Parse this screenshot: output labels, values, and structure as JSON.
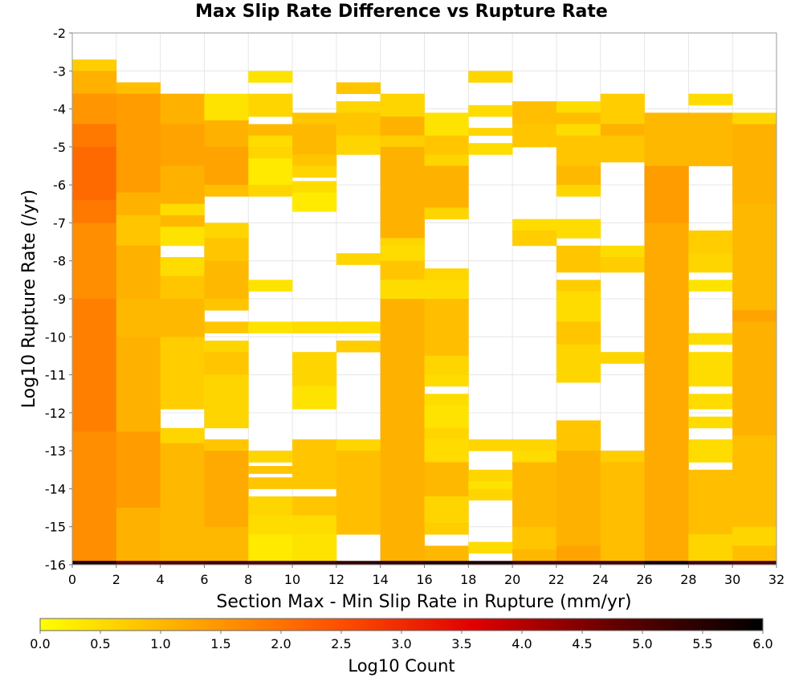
{
  "chart_data": {
    "type": "heatmap",
    "title": "Max Slip Rate Difference vs Rupture Rate",
    "xlabel": "Section Max - Min Slip Rate in Rupture (mm/yr)",
    "ylabel": "Log10 Rupture Rate (/yr)",
    "xlim": [
      0,
      32
    ],
    "ylim": [
      -16,
      -2
    ],
    "x_ticks": [
      0,
      2,
      4,
      6,
      8,
      10,
      12,
      14,
      16,
      18,
      20,
      22,
      24,
      26,
      28,
      30,
      32
    ],
    "y_ticks": [
      -2,
      -3,
      -4,
      -5,
      -6,
      -7,
      -8,
      -9,
      -10,
      -11,
      -12,
      -13,
      -14,
      -15,
      -16
    ],
    "x_bin_width": 2,
    "y_bin_height": 0.25,
    "grid": true,
    "colorbar": {
      "label": "Log10 Count",
      "range": [
        0,
        6
      ],
      "ticks": [
        "0.0",
        "0.5",
        "1.0",
        "1.5",
        "2.0",
        "2.5",
        "3.0",
        "3.5",
        "4.0",
        "4.5",
        "5.0",
        "5.5",
        "6.0"
      ],
      "colors": [
        "#ffff00",
        "#ffaa00",
        "#ff5500",
        "#e00000",
        "#600000",
        "#000000"
      ],
      "placement": "bottom"
    },
    "columns": [
      {
        "x": 0,
        "runs": [
          [
            -3.0,
            -2.7,
            0.7
          ],
          [
            -3.6,
            -3.0,
            1.1
          ],
          [
            -4.4,
            -3.6,
            1.5
          ],
          [
            -5.0,
            -4.4,
            1.9
          ],
          [
            -6.4,
            -5.0,
            2.1
          ],
          [
            -7.0,
            -6.4,
            1.9
          ],
          [
            -8.0,
            -7.0,
            1.6
          ],
          [
            -9.0,
            -8.0,
            1.6
          ],
          [
            -12.5,
            -9.0,
            1.8
          ],
          [
            -15.9,
            -12.5,
            1.6
          ],
          [
            -16.0,
            -15.9,
            5.6
          ]
        ]
      },
      {
        "x": 2,
        "runs": [
          [
            -3.6,
            -3.3,
            0.9
          ],
          [
            -6.2,
            -3.6,
            1.4
          ],
          [
            -6.8,
            -6.2,
            1.1
          ],
          [
            -7.6,
            -6.8,
            0.8
          ],
          [
            -9.0,
            -7.6,
            1.1
          ],
          [
            -10.0,
            -9.0,
            1.0
          ],
          [
            -12.5,
            -10.0,
            1.1
          ],
          [
            -14.5,
            -12.5,
            1.4
          ],
          [
            -15.9,
            -14.5,
            1.1
          ],
          [
            -16.0,
            -15.9,
            4.8
          ]
        ]
      },
      {
        "x": 4,
        "runs": [
          [
            -4.4,
            -3.6,
            1.1
          ],
          [
            -5.5,
            -4.4,
            1.3
          ],
          [
            -6.5,
            -5.5,
            1.1
          ],
          [
            -6.8,
            -6.5,
            0.5
          ],
          [
            -7.1,
            -6.8,
            1.0
          ],
          [
            -7.6,
            -7.1,
            0.4
          ],
          [
            -8.4,
            -7.9,
            0.5
          ],
          [
            -9.0,
            -8.4,
            0.8
          ],
          [
            -10.0,
            -9.0,
            1.0
          ],
          [
            -11.0,
            -10.0,
            0.7
          ],
          [
            -11.9,
            -11.0,
            0.7
          ],
          [
            -12.8,
            -12.4,
            0.6
          ],
          [
            -13.5,
            -12.8,
            1.0
          ],
          [
            -15.9,
            -13.5,
            1.0
          ],
          [
            -16.0,
            -15.9,
            5.0
          ]
        ]
      },
      {
        "x": 6,
        "runs": [
          [
            -4.3,
            -3.6,
            0.4
          ],
          [
            -5.0,
            -4.3,
            1.1
          ],
          [
            -6.0,
            -5.0,
            1.3
          ],
          [
            -6.3,
            -6.0,
            0.9
          ],
          [
            -7.4,
            -7.0,
            0.6
          ],
          [
            -8.0,
            -7.4,
            0.8
          ],
          [
            -9.0,
            -8.0,
            1.0
          ],
          [
            -9.3,
            -9.0,
            0.8
          ],
          [
            -9.9,
            -9.6,
            0.8
          ],
          [
            -10.4,
            -10.1,
            0.6
          ],
          [
            -11.0,
            -10.4,
            0.8
          ],
          [
            -12.0,
            -11.0,
            0.6
          ],
          [
            -12.4,
            -12.0,
            0.6
          ],
          [
            -13.0,
            -12.7,
            0.8
          ],
          [
            -15.0,
            -13.0,
            1.2
          ],
          [
            -15.9,
            -15.0,
            1.0
          ],
          [
            -16.0,
            -15.9,
            5.2
          ]
        ]
      },
      {
        "x": 8,
        "runs": [
          [
            -3.3,
            -3.0,
            0.4
          ],
          [
            -4.2,
            -3.6,
            0.6
          ],
          [
            -4.7,
            -4.4,
            1.0
          ],
          [
            -5.0,
            -4.7,
            0.5
          ],
          [
            -5.3,
            -5.0,
            0.6
          ],
          [
            -6.0,
            -5.3,
            0.3
          ],
          [
            -6.3,
            -6.0,
            0.6
          ],
          [
            -8.8,
            -8.5,
            0.4
          ],
          [
            -9.9,
            -9.6,
            0.4
          ],
          [
            -13.3,
            -13.0,
            0.6
          ],
          [
            -13.6,
            -13.4,
            0.8
          ],
          [
            -14.0,
            -13.7,
            0.8
          ],
          [
            -14.7,
            -14.2,
            0.6
          ],
          [
            -15.2,
            -14.7,
            0.5
          ],
          [
            -15.9,
            -15.2,
            0.3
          ],
          [
            -16.0,
            -15.9,
            5.0
          ]
        ]
      },
      {
        "x": 10,
        "runs": [
          [
            -4.4,
            -4.1,
            0.8
          ],
          [
            -5.2,
            -4.4,
            1.0
          ],
          [
            -5.5,
            -5.2,
            0.8
          ],
          [
            -5.8,
            -5.5,
            0.6
          ],
          [
            -6.2,
            -5.9,
            0.5
          ],
          [
            -6.7,
            -6.2,
            0.3
          ],
          [
            -9.9,
            -9.6,
            0.5
          ],
          [
            -11.3,
            -10.4,
            0.6
          ],
          [
            -11.9,
            -11.3,
            0.4
          ],
          [
            -13.0,
            -12.7,
            0.8
          ],
          [
            -14.0,
            -13.0,
            0.8
          ],
          [
            -14.7,
            -14.2,
            0.8
          ],
          [
            -15.2,
            -14.7,
            0.5
          ],
          [
            -15.9,
            -15.2,
            0.4
          ],
          [
            -16.0,
            -15.9,
            5.2
          ]
        ]
      },
      {
        "x": 12,
        "runs": [
          [
            -3.6,
            -3.3,
            0.8
          ],
          [
            -4.1,
            -3.8,
            0.6
          ],
          [
            -4.7,
            -4.1,
            0.8
          ],
          [
            -5.2,
            -4.7,
            0.6
          ],
          [
            -8.1,
            -7.8,
            0.6
          ],
          [
            -9.9,
            -9.6,
            0.5
          ],
          [
            -10.4,
            -10.1,
            0.7
          ],
          [
            -13.0,
            -12.7,
            0.6
          ],
          [
            -15.2,
            -13.0,
            0.9
          ],
          [
            -16.0,
            -15.9,
            5.4
          ]
        ]
      },
      {
        "x": 14,
        "runs": [
          [
            -4.2,
            -3.6,
            0.6
          ],
          [
            -4.7,
            -4.2,
            1.1
          ],
          [
            -5.0,
            -4.7,
            0.7
          ],
          [
            -6.0,
            -5.0,
            1.1
          ],
          [
            -7.4,
            -6.0,
            1.1
          ],
          [
            -7.6,
            -7.4,
            0.6
          ],
          [
            -8.0,
            -7.6,
            0.5
          ],
          [
            -8.5,
            -8.0,
            0.8
          ],
          [
            -9.0,
            -8.5,
            0.5
          ],
          [
            -15.9,
            -9.0,
            1.1
          ],
          [
            -16.0,
            -15.9,
            5.4
          ]
        ]
      },
      {
        "x": 16,
        "runs": [
          [
            -4.7,
            -4.1,
            0.4
          ],
          [
            -5.2,
            -4.7,
            0.8
          ],
          [
            -5.5,
            -5.2,
            0.6
          ],
          [
            -6.6,
            -5.5,
            1.1
          ],
          [
            -6.9,
            -6.6,
            0.6
          ],
          [
            -8.5,
            -8.2,
            0.6
          ],
          [
            -9.0,
            -8.5,
            0.5
          ],
          [
            -10.5,
            -9.0,
            0.9
          ],
          [
            -11.0,
            -10.5,
            0.6
          ],
          [
            -11.3,
            -11.0,
            0.5
          ],
          [
            -11.8,
            -11.5,
            0.5
          ],
          [
            -12.4,
            -11.8,
            0.4
          ],
          [
            -12.7,
            -12.4,
            0.6
          ],
          [
            -13.3,
            -12.7,
            0.5
          ],
          [
            -14.2,
            -13.3,
            1.0
          ],
          [
            -14.9,
            -14.2,
            0.6
          ],
          [
            -15.2,
            -14.9,
            0.7
          ],
          [
            -15.9,
            -15.5,
            1.0
          ],
          [
            -16.0,
            -15.9,
            5.6
          ]
        ]
      },
      {
        "x": 18,
        "runs": [
          [
            -3.3,
            -3.0,
            0.6
          ],
          [
            -4.2,
            -3.9,
            0.5
          ],
          [
            -4.7,
            -4.5,
            0.6
          ],
          [
            -5.2,
            -4.9,
            0.5
          ],
          [
            -13.0,
            -12.7,
            0.6
          ],
          [
            -13.8,
            -13.5,
            0.6
          ],
          [
            -14.0,
            -13.8,
            0.4
          ],
          [
            -14.3,
            -14.0,
            0.6
          ],
          [
            -15.7,
            -15.4,
            0.5
          ],
          [
            -16.0,
            -15.9,
            5.6
          ]
        ]
      },
      {
        "x": 20,
        "runs": [
          [
            -4.4,
            -3.8,
            0.9
          ],
          [
            -5.0,
            -4.4,
            0.8
          ],
          [
            -7.2,
            -6.9,
            0.5
          ],
          [
            -7.6,
            -7.2,
            0.7
          ],
          [
            -13.0,
            -12.7,
            0.6
          ],
          [
            -13.3,
            -13.0,
            0.5
          ],
          [
            -15.0,
            -13.3,
            1.0
          ],
          [
            -15.6,
            -15.0,
            0.8
          ],
          [
            -15.9,
            -15.6,
            1.0
          ],
          [
            -16.0,
            -15.9,
            5.2
          ]
        ]
      },
      {
        "x": 22,
        "runs": [
          [
            -4.1,
            -3.8,
            0.5
          ],
          [
            -4.4,
            -4.1,
            0.9
          ],
          [
            -4.7,
            -4.4,
            0.5
          ],
          [
            -5.5,
            -4.7,
            0.8
          ],
          [
            -6.0,
            -5.5,
            1.0
          ],
          [
            -6.3,
            -6.0,
            0.6
          ],
          [
            -7.2,
            -6.9,
            0.5
          ],
          [
            -7.4,
            -7.2,
            0.5
          ],
          [
            -8.3,
            -7.6,
            0.8
          ],
          [
            -8.8,
            -8.5,
            0.7
          ],
          [
            -9.6,
            -8.8,
            0.5
          ],
          [
            -10.2,
            -9.6,
            0.8
          ],
          [
            -11.2,
            -10.2,
            0.6
          ],
          [
            -13.0,
            -12.2,
            0.8
          ],
          [
            -15.5,
            -13.0,
            1.1
          ],
          [
            -15.9,
            -15.5,
            1.3
          ],
          [
            -16.0,
            -15.9,
            5.2
          ]
        ]
      },
      {
        "x": 24,
        "runs": [
          [
            -4.4,
            -3.6,
            0.7
          ],
          [
            -4.7,
            -4.4,
            1.1
          ],
          [
            -5.4,
            -4.7,
            0.8
          ],
          [
            -7.9,
            -7.6,
            0.5
          ],
          [
            -8.3,
            -7.9,
            0.7
          ],
          [
            -10.7,
            -10.4,
            0.6
          ],
          [
            -13.3,
            -13.0,
            0.7
          ],
          [
            -15.9,
            -13.3,
            0.9
          ],
          [
            -16.0,
            -15.9,
            5.2
          ]
        ]
      },
      {
        "x": 26,
        "runs": [
          [
            -5.5,
            -4.1,
            1.0
          ],
          [
            -7.0,
            -5.5,
            1.4
          ],
          [
            -15.9,
            -7.0,
            1.2
          ],
          [
            -16.0,
            -15.9,
            5.8
          ]
        ]
      },
      {
        "x": 28,
        "runs": [
          [
            -3.9,
            -3.6,
            0.5
          ],
          [
            -5.5,
            -4.1,
            1.0
          ],
          [
            -7.8,
            -7.2,
            0.7
          ],
          [
            -8.3,
            -7.8,
            0.6
          ],
          [
            -8.8,
            -8.5,
            0.4
          ],
          [
            -10.2,
            -9.9,
            0.5
          ],
          [
            -11.3,
            -10.4,
            0.5
          ],
          [
            -11.9,
            -11.5,
            0.5
          ],
          [
            -12.4,
            -12.1,
            0.5
          ],
          [
            -13.3,
            -12.7,
            0.5
          ],
          [
            -15.2,
            -13.5,
            0.9
          ],
          [
            -15.9,
            -15.2,
            0.6
          ],
          [
            -16.0,
            -15.9,
            5.2
          ]
        ]
      },
      {
        "x": 30,
        "runs": [
          [
            -4.4,
            -4.1,
            0.6
          ],
          [
            -6.5,
            -4.4,
            1.1
          ],
          [
            -9.3,
            -6.5,
            1.0
          ],
          [
            -9.6,
            -9.3,
            1.3
          ],
          [
            -12.6,
            -9.6,
            1.1
          ],
          [
            -15.0,
            -12.6,
            0.9
          ],
          [
            -15.5,
            -15.0,
            0.6
          ],
          [
            -15.9,
            -15.5,
            0.9
          ],
          [
            -16.0,
            -15.9,
            5.0
          ]
        ]
      }
    ]
  }
}
